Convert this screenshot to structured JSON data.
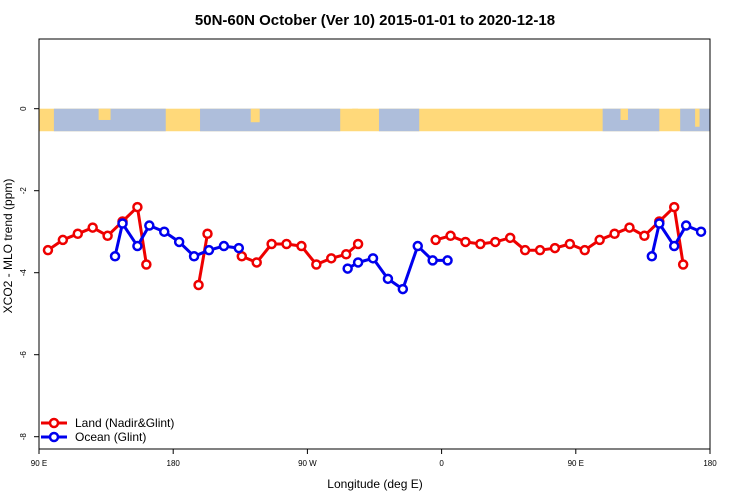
{
  "chart_data": {
    "type": "line",
    "title": "50N-60N October (Ver 10)   2015-01-01 to 2020-12-18",
    "xlabel": "Longitude (deg E)",
    "ylabel": "XCO2 - MLO trend (ppm)",
    "xlim": [
      90,
      540
    ],
    "ylim": [
      -8.3,
      1.7
    ],
    "x_ticks": [
      {
        "value": 90,
        "label": "90 E"
      },
      {
        "value": 180,
        "label": "180"
      },
      {
        "value": 270,
        "label": "90 W"
      },
      {
        "value": 360,
        "label": "0"
      },
      {
        "value": 450,
        "label": "90 E"
      },
      {
        "value": 540,
        "label": "180"
      }
    ],
    "y_ticks": [
      {
        "value": 0,
        "label": "0"
      },
      {
        "value": -2,
        "label": "-2"
      },
      {
        "value": -4,
        "label": "-4"
      },
      {
        "value": -6,
        "label": "-6"
      },
      {
        "value": -8,
        "label": "-8"
      }
    ],
    "map_strip": {
      "y_top": 0,
      "y_bottom": -0.55,
      "land_color": "#FFD97A",
      "ocean_color": "#AEBEDB"
    },
    "legend_position": "bottom-left",
    "series": [
      {
        "name": "Land (Nadir&Glint)",
        "color": "#EE0000",
        "segments": [
          [
            [
              96,
              -3.45
            ],
            [
              106,
              -3.2
            ],
            [
              116,
              -3.05
            ],
            [
              126,
              -2.9
            ],
            [
              136,
              -3.1
            ],
            [
              146,
              -2.75
            ],
            [
              156,
              -2.4
            ],
            [
              162,
              -3.8
            ]
          ],
          [
            [
              197,
              -4.3
            ],
            [
              203,
              -3.05
            ]
          ],
          [
            [
              226,
              -3.6
            ],
            [
              236,
              -3.75
            ],
            [
              246,
              -3.3
            ],
            [
              256,
              -3.3
            ],
            [
              266,
              -3.35
            ],
            [
              276,
              -3.8
            ],
            [
              286,
              -3.65
            ],
            [
              296,
              -3.55
            ],
            [
              304,
              -3.3
            ]
          ],
          [
            [
              356,
              -3.2
            ],
            [
              366,
              -3.1
            ],
            [
              376,
              -3.25
            ],
            [
              386,
              -3.3
            ],
            [
              396,
              -3.25
            ],
            [
              406,
              -3.15
            ],
            [
              416,
              -3.45
            ],
            [
              426,
              -3.45
            ],
            [
              436,
              -3.4
            ],
            [
              446,
              -3.3
            ],
            [
              456,
              -3.45
            ],
            [
              466,
              -3.2
            ],
            [
              476,
              -3.05
            ],
            [
              486,
              -2.9
            ],
            [
              496,
              -3.1
            ],
            [
              506,
              -2.75
            ],
            [
              516,
              -2.4
            ],
            [
              522,
              -3.8
            ]
          ]
        ]
      },
      {
        "name": "Ocean (Glint)",
        "color": "#0000EE",
        "segments": [
          [
            [
              141,
              -3.6
            ],
            [
              146,
              -2.8
            ],
            [
              156,
              -3.35
            ],
            [
              164,
              -2.85
            ],
            [
              174,
              -3.0
            ],
            [
              184,
              -3.25
            ],
            [
              194,
              -3.6
            ],
            [
              204,
              -3.45
            ],
            [
              214,
              -3.35
            ],
            [
              224,
              -3.4
            ]
          ],
          [
            [
              297,
              -3.9
            ],
            [
              304,
              -3.75
            ],
            [
              314,
              -3.65
            ],
            [
              324,
              -4.15
            ],
            [
              334,
              -4.4
            ],
            [
              344,
              -3.35
            ],
            [
              354,
              -3.7
            ],
            [
              364,
              -3.7
            ]
          ],
          [
            [
              501,
              -3.6
            ],
            [
              506,
              -2.8
            ],
            [
              516,
              -3.35
            ],
            [
              524,
              -2.85
            ],
            [
              534,
              -3.0
            ]
          ]
        ]
      }
    ]
  }
}
